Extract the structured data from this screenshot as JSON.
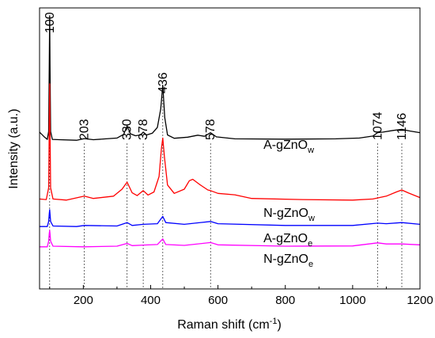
{
  "chart_data": {
    "type": "line",
    "xlabel": "Raman shift (cm",
    "xlabel_sup": "-1",
    "xlabel_end": ")",
    "ylabel": "Intensity (a.u.)",
    "xlim": [
      70,
      1200
    ],
    "ylim": [
      0,
      1
    ],
    "x_ticks": [
      200,
      400,
      600,
      800,
      1000,
      1200
    ],
    "x_tick_labels": [
      "200",
      "400",
      "600",
      "800",
      "1000",
      "1200"
    ],
    "grid": false,
    "peak_markers": [
      {
        "x": 100,
        "label": "100"
      },
      {
        "x": 203,
        "label": "203"
      },
      {
        "x": 330,
        "label": "330"
      },
      {
        "x": 378,
        "label": "378"
      },
      {
        "x": 436,
        "label": "436"
      },
      {
        "x": 578,
        "label": "578"
      },
      {
        "x": 1074,
        "label": "1074"
      },
      {
        "x": 1146,
        "label": "1146"
      }
    ],
    "series": [
      {
        "name": "A-gZnO",
        "name_sub": "w",
        "color": "#000000",
        "baseline": 0.526,
        "points": [
          [
            70,
            0.558
          ],
          [
            85,
            0.54
          ],
          [
            93,
            0.532
          ],
          [
            97,
            0.56
          ],
          [
            99,
            0.8
          ],
          [
            100,
            0.972
          ],
          [
            101,
            0.8
          ],
          [
            103,
            0.56
          ],
          [
            108,
            0.532
          ],
          [
            130,
            0.531
          ],
          [
            180,
            0.529
          ],
          [
            203,
            0.535
          ],
          [
            230,
            0.531
          ],
          [
            300,
            0.537
          ],
          [
            320,
            0.55
          ],
          [
            330,
            0.58
          ],
          [
            340,
            0.552
          ],
          [
            355,
            0.545
          ],
          [
            370,
            0.548
          ],
          [
            378,
            0.558
          ],
          [
            388,
            0.548
          ],
          [
            405,
            0.554
          ],
          [
            420,
            0.575
          ],
          [
            430,
            0.64
          ],
          [
            436,
            0.725
          ],
          [
            442,
            0.61
          ],
          [
            450,
            0.548
          ],
          [
            470,
            0.536
          ],
          [
            510,
            0.54
          ],
          [
            540,
            0.547
          ],
          [
            560,
            0.543
          ],
          [
            578,
            0.556
          ],
          [
            595,
            0.541
          ],
          [
            650,
            0.534
          ],
          [
            800,
            0.533
          ],
          [
            950,
            0.534
          ],
          [
            1020,
            0.537
          ],
          [
            1060,
            0.544
          ],
          [
            1074,
            0.556
          ],
          [
            1090,
            0.558
          ],
          [
            1120,
            0.564
          ],
          [
            1146,
            0.568
          ],
          [
            1170,
            0.562
          ],
          [
            1200,
            0.556
          ]
        ]
      },
      {
        "name": "N-gZnO",
        "name_sub": "w",
        "color": "#ff0000",
        "baseline": 0.305,
        "points": [
          [
            70,
            0.32
          ],
          [
            90,
            0.318
          ],
          [
            97,
            0.36
          ],
          [
            99,
            0.58
          ],
          [
            100,
            0.73
          ],
          [
            101,
            0.58
          ],
          [
            103,
            0.36
          ],
          [
            110,
            0.32
          ],
          [
            150,
            0.316
          ],
          [
            203,
            0.33
          ],
          [
            230,
            0.322
          ],
          [
            290,
            0.33
          ],
          [
            315,
            0.355
          ],
          [
            330,
            0.38
          ],
          [
            345,
            0.342
          ],
          [
            360,
            0.332
          ],
          [
            378,
            0.35
          ],
          [
            392,
            0.334
          ],
          [
            410,
            0.345
          ],
          [
            425,
            0.4
          ],
          [
            432,
            0.5
          ],
          [
            436,
            0.537
          ],
          [
            441,
            0.47
          ],
          [
            450,
            0.37
          ],
          [
            470,
            0.34
          ],
          [
            500,
            0.355
          ],
          [
            515,
            0.385
          ],
          [
            525,
            0.39
          ],
          [
            545,
            0.372
          ],
          [
            570,
            0.352
          ],
          [
            578,
            0.35
          ],
          [
            600,
            0.34
          ],
          [
            650,
            0.335
          ],
          [
            700,
            0.322
          ],
          [
            850,
            0.318
          ],
          [
            1000,
            0.316
          ],
          [
            1060,
            0.32
          ],
          [
            1100,
            0.33
          ],
          [
            1130,
            0.345
          ],
          [
            1146,
            0.352
          ],
          [
            1165,
            0.342
          ],
          [
            1200,
            0.325
          ]
        ]
      },
      {
        "name": "A-gZnO",
        "name_sub": "e",
        "color": "#0000ff",
        "baseline": 0.218,
        "points": [
          [
            70,
            0.222
          ],
          [
            93,
            0.222
          ],
          [
            97,
            0.24
          ],
          [
            99,
            0.268
          ],
          [
            100,
            0.282
          ],
          [
            101,
            0.268
          ],
          [
            103,
            0.24
          ],
          [
            110,
            0.224
          ],
          [
            180,
            0.222
          ],
          [
            203,
            0.226
          ],
          [
            300,
            0.224
          ],
          [
            330,
            0.236
          ],
          [
            345,
            0.226
          ],
          [
            378,
            0.23
          ],
          [
            420,
            0.232
          ],
          [
            436,
            0.258
          ],
          [
            445,
            0.236
          ],
          [
            500,
            0.23
          ],
          [
            578,
            0.24
          ],
          [
            600,
            0.232
          ],
          [
            800,
            0.226
          ],
          [
            1000,
            0.226
          ],
          [
            1074,
            0.234
          ],
          [
            1100,
            0.232
          ],
          [
            1146,
            0.236
          ],
          [
            1200,
            0.23
          ]
        ]
      },
      {
        "name": "N-gZnO",
        "name_sub": "e",
        "color": "#ff00ff",
        "baseline": 0.147,
        "points": [
          [
            70,
            0.15
          ],
          [
            93,
            0.15
          ],
          [
            97,
            0.17
          ],
          [
            99,
            0.198
          ],
          [
            100,
            0.208
          ],
          [
            101,
            0.198
          ],
          [
            103,
            0.17
          ],
          [
            110,
            0.152
          ],
          [
            200,
            0.15
          ],
          [
            300,
            0.152
          ],
          [
            330,
            0.162
          ],
          [
            345,
            0.154
          ],
          [
            378,
            0.156
          ],
          [
            420,
            0.158
          ],
          [
            436,
            0.178
          ],
          [
            445,
            0.158
          ],
          [
            500,
            0.155
          ],
          [
            578,
            0.165
          ],
          [
            600,
            0.157
          ],
          [
            800,
            0.152
          ],
          [
            1000,
            0.153
          ],
          [
            1074,
            0.164
          ],
          [
            1100,
            0.16
          ],
          [
            1146,
            0.16
          ],
          [
            1200,
            0.157
          ]
        ]
      }
    ],
    "series_label_x": [
      735,
      735,
      735,
      735
    ]
  }
}
